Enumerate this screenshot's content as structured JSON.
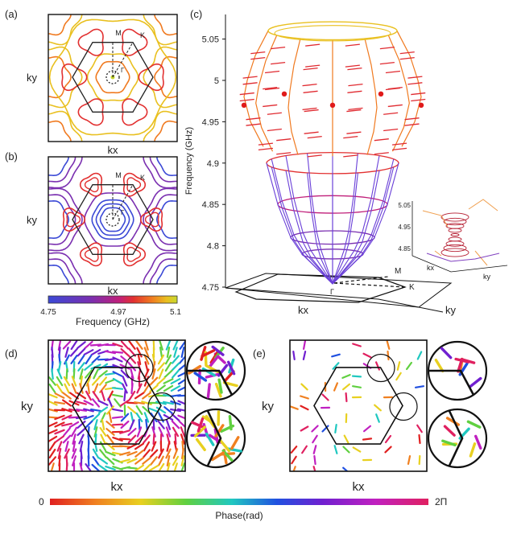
{
  "panels": {
    "a": {
      "label": "(a)",
      "xlabel": "kx",
      "ylabel": "ky",
      "points": {
        "M": "M",
        "K": "K",
        "G": "Γ"
      }
    },
    "b": {
      "label": "(b)",
      "xlabel": "kx",
      "ylabel": "ky",
      "points": {
        "M": "M",
        "K": "K",
        "G": "Γ"
      }
    },
    "c": {
      "label": "(c)",
      "ylabel": "Frequency (GHz)",
      "xlabel": "kx",
      "zlabel": "ky",
      "points": {
        "M": "M",
        "K": "K",
        "G": "Γ"
      },
      "inset": {
        "ticks": [
          "5.05",
          "4.95",
          "4.85"
        ],
        "xlabel": "kx",
        "ylabel": "ky"
      }
    },
    "d": {
      "label": "(d)",
      "xlabel": "kx",
      "ylabel": "ky"
    },
    "e": {
      "label": "(e)",
      "xlabel": "kx",
      "ylabel": "ky"
    }
  },
  "colorbars": {
    "frequency": {
      "title": "Frequency (GHz)",
      "ticks": [
        "4.75",
        "4.97",
        "5.1"
      ],
      "colors": [
        "#3b49d6",
        "#7a2fb0",
        "#c01f7a",
        "#e23030",
        "#f07a20",
        "#e9c020",
        "#c8d830"
      ]
    },
    "phase": {
      "title": "Phase(rad)",
      "min_label": "0",
      "max_label": "2Π",
      "colors": [
        "#e02020",
        "#f08020",
        "#e8d020",
        "#60d040",
        "#20c8c0",
        "#2050e0",
        "#7020d0",
        "#c020c0",
        "#e02060"
      ]
    }
  },
  "chart_data": [
    {
      "type": "contour",
      "panel": "a",
      "xlabel": "kx",
      "ylabel": "ky",
      "levels_ghz": [
        4.97,
        5.0,
        5.05
      ]
    },
    {
      "type": "contour",
      "panel": "b",
      "xlabel": "kx",
      "ylabel": "ky",
      "levels_ghz": [
        4.8,
        4.85,
        4.9,
        4.95
      ]
    },
    {
      "type": "surface3d",
      "panel": "c",
      "ylabel": "Frequency (GHz)",
      "zticks": [
        4.75,
        4.8,
        4.85,
        4.9,
        4.95,
        5,
        5.05
      ],
      "zlim": [
        4.75,
        5.07
      ],
      "dirac_frequency_ghz": 4.97
    },
    {
      "type": "quiver",
      "panel": "d",
      "xlabel": "kx",
      "ylabel": "ky",
      "colorscale": "phase",
      "range": [
        0,
        6.283
      ]
    },
    {
      "type": "quiver",
      "panel": "e",
      "xlabel": "kx",
      "ylabel": "ky",
      "colorscale": "phase",
      "range": [
        0,
        6.283
      ]
    }
  ]
}
